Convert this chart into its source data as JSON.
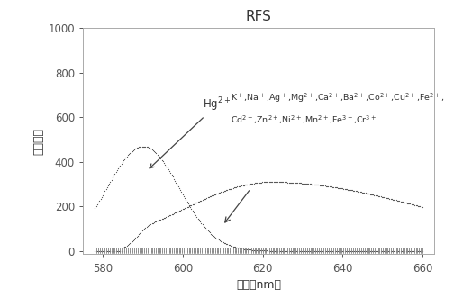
{
  "title": "RFS",
  "xlabel": "波长（nm）",
  "ylabel": "荧光强度",
  "xlim": [
    575,
    663
  ],
  "ylim": [
    -15,
    1000
  ],
  "yticks": [
    0,
    200,
    400,
    600,
    800,
    1000
  ],
  "xticks": [
    580,
    600,
    620,
    640,
    660
  ],
  "hg_label": "Hg$^{2+}$",
  "line1_label": "K$^+$,Na$^+$,Ag$^+$,Mg$^{2+}$,Ca$^{2+}$,Ba$^{2+}$,Co$^{2+}$,Cu$^{2+}$,Fe$^{2+}$,",
  "line2_label": "Cd$^{2+}$,Zn$^{2+}$,Ni$^{2+}$,Mn$^{2+}$,Fe$^{3+}$,Cr$^{3+}$",
  "background": "#ffffff",
  "curve_color": "#555555",
  "flat_color": "#888888"
}
